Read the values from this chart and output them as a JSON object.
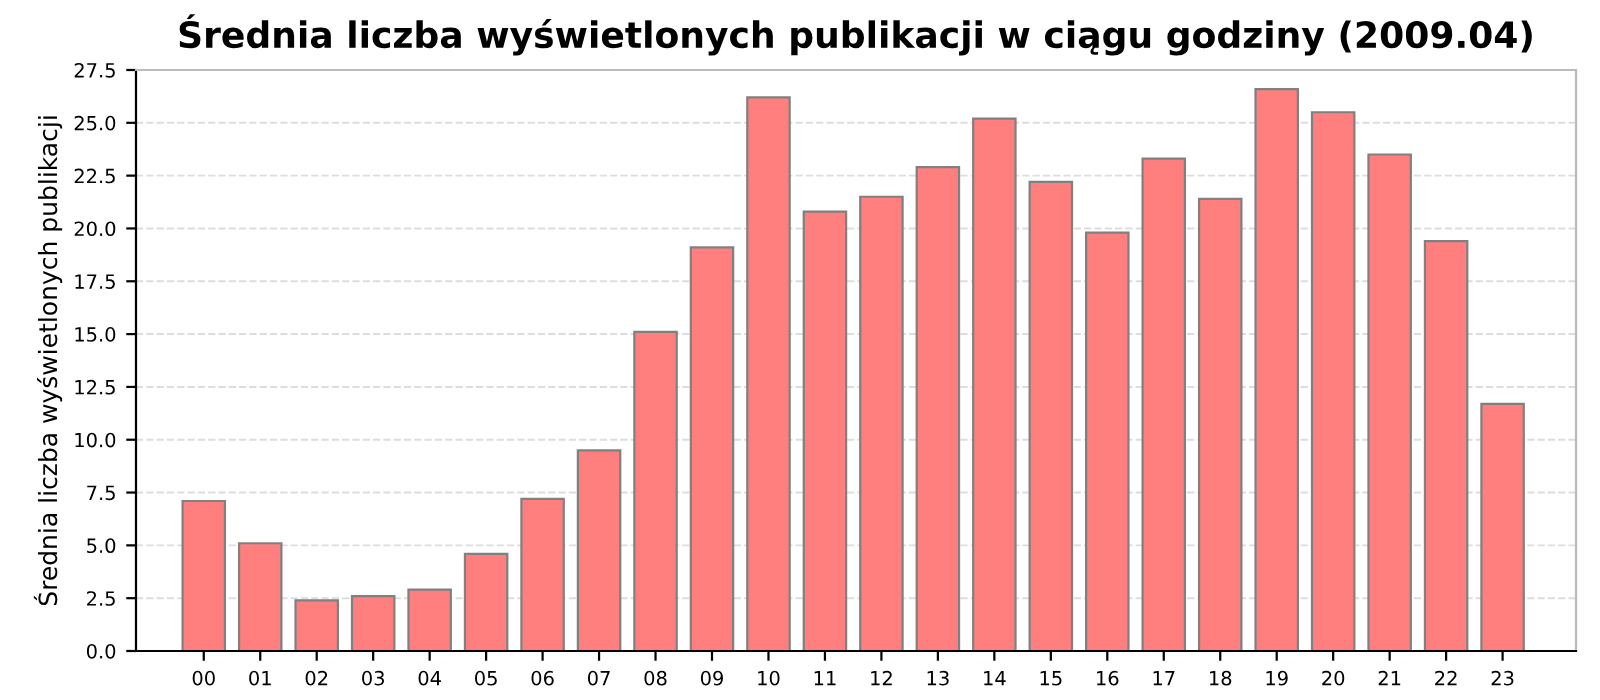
{
  "chart_data": {
    "type": "bar",
    "title": "Średnia liczba wyświetlonych publikacji w ciągu godziny (2009.04)",
    "ylabel": "Średnia liczba wyświetlonych publikacji",
    "categories": [
      "00",
      "01",
      "02",
      "03",
      "04",
      "05",
      "06",
      "07",
      "08",
      "09",
      "10",
      "11",
      "12",
      "13",
      "14",
      "15",
      "16",
      "17",
      "18",
      "19",
      "20",
      "21",
      "22",
      "23"
    ],
    "values": [
      7.1,
      5.1,
      2.4,
      2.6,
      2.9,
      4.6,
      7.2,
      9.5,
      15.1,
      19.1,
      26.2,
      20.8,
      21.5,
      22.9,
      25.2,
      22.2,
      19.8,
      23.3,
      21.4,
      26.6,
      25.5,
      23.5,
      19.4,
      11.7
    ],
    "color": "#ff7f7f",
    "ylim": [
      0,
      27.5
    ],
    "yticks": [
      {
        "value": 0,
        "label": "0.0"
      },
      {
        "value": 2.5,
        "label": "2.5"
      },
      {
        "value": 5,
        "label": "5.0"
      },
      {
        "value": 7.5,
        "label": "7.5"
      },
      {
        "value": 10,
        "label": "10.0"
      },
      {
        "value": 12.5,
        "label": "12.5"
      },
      {
        "value": 15,
        "label": "15.0"
      },
      {
        "value": 17.5,
        "label": "17.5"
      },
      {
        "value": 20,
        "label": "20.0"
      },
      {
        "value": 22.5,
        "label": "22.5"
      },
      {
        "value": 25,
        "label": "25.0"
      },
      {
        "value": 27.5,
        "label": "27.5"
      }
    ],
    "grid": "y"
  }
}
